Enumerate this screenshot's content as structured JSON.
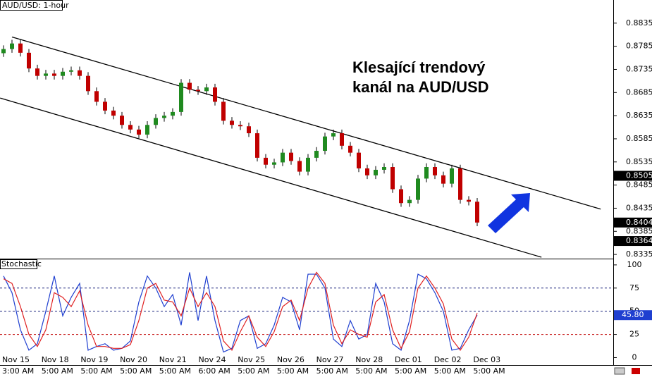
{
  "chart_data": {
    "type": "candlestick",
    "title": "AUD/USD: 1-hour",
    "annotation": [
      "Klesající trendový",
      "kanál na AUD/USD"
    ],
    "up_color": "#1f8a1f",
    "down_color": "#c00000",
    "wick_color": "#000000",
    "open": [
      0.877,
      0.8779,
      0.8791,
      0.8771,
      0.8737,
      0.8721,
      0.8726,
      0.8721,
      0.873,
      0.8733,
      0.8721,
      0.8688,
      0.8665,
      0.8646,
      0.8635,
      0.8615,
      0.8605,
      0.8594,
      0.8615,
      0.863,
      0.8635,
      0.8643,
      0.8706,
      0.8691,
      0.8688,
      0.8696,
      0.8665,
      0.8624,
      0.8615,
      0.8612,
      0.8597,
      0.8544,
      0.8529,
      0.8534,
      0.8555,
      0.8537,
      0.8514,
      0.8544,
      0.8559,
      0.859,
      0.8597,
      0.857,
      0.8555,
      0.8521,
      0.8506,
      0.8518,
      0.8524,
      0.8476,
      0.8446,
      0.8453,
      0.8499,
      0.8524,
      0.8506,
      0.8488,
      0.8521,
      0.8453,
      0.8449
    ],
    "high": [
      0.8787,
      0.8799,
      0.8799,
      0.8779,
      0.8745,
      0.8734,
      0.8734,
      0.8738,
      0.8741,
      0.8741,
      0.8729,
      0.8696,
      0.8673,
      0.8654,
      0.8643,
      0.8623,
      0.8613,
      0.8623,
      0.8638,
      0.8643,
      0.8651,
      0.8714,
      0.8714,
      0.8699,
      0.8704,
      0.8704,
      0.8673,
      0.8632,
      0.8623,
      0.862,
      0.8605,
      0.8552,
      0.8542,
      0.8563,
      0.8563,
      0.8545,
      0.8552,
      0.8567,
      0.8598,
      0.8605,
      0.8605,
      0.8578,
      0.8563,
      0.8529,
      0.8526,
      0.8532,
      0.8532,
      0.8484,
      0.8461,
      0.8507,
      0.8532,
      0.8532,
      0.8514,
      0.8529,
      0.8529,
      0.8461,
      0.8457
    ],
    "low": [
      0.8762,
      0.8771,
      0.8763,
      0.8729,
      0.8713,
      0.8713,
      0.8713,
      0.8713,
      0.8722,
      0.8713,
      0.868,
      0.8657,
      0.8638,
      0.8627,
      0.8607,
      0.8597,
      0.8586,
      0.8586,
      0.8607,
      0.8622,
      0.8627,
      0.8635,
      0.8683,
      0.868,
      0.868,
      0.8657,
      0.8616,
      0.8607,
      0.8604,
      0.8589,
      0.8536,
      0.8521,
      0.8521,
      0.8526,
      0.8529,
      0.8506,
      0.8506,
      0.8536,
      0.8551,
      0.8582,
      0.8562,
      0.8547,
      0.8513,
      0.8498,
      0.8498,
      0.851,
      0.8468,
      0.8438,
      0.8438,
      0.8445,
      0.8491,
      0.8498,
      0.848,
      0.848,
      0.8445,
      0.8441,
      0.8396
    ],
    "close": [
      0.8779,
      0.8791,
      0.8771,
      0.8737,
      0.8721,
      0.8726,
      0.8721,
      0.873,
      0.8733,
      0.8721,
      0.8688,
      0.8665,
      0.8646,
      0.8635,
      0.8615,
      0.8605,
      0.8594,
      0.8615,
      0.863,
      0.8635,
      0.8643,
      0.8706,
      0.8691,
      0.8688,
      0.8696,
      0.8665,
      0.8624,
      0.8615,
      0.8612,
      0.8597,
      0.8544,
      0.8529,
      0.8534,
      0.8555,
      0.8537,
      0.8514,
      0.8544,
      0.8559,
      0.859,
      0.8597,
      0.857,
      0.8555,
      0.8521,
      0.8506,
      0.8518,
      0.8524,
      0.8476,
      0.8446,
      0.8453,
      0.8499,
      0.8524,
      0.8506,
      0.8488,
      0.8521,
      0.8453,
      0.8449,
      0.8404
    ],
    "ylim": [
      0.8326,
      0.8885
    ],
    "yticks": [
      0.8835,
      0.8785,
      0.8735,
      0.8685,
      0.8635,
      0.8585,
      0.8535,
      0.8485,
      0.8435,
      0.8385,
      0.8335
    ],
    "price_markers": [
      0.8505,
      0.8404,
      0.8364
    ],
    "trendlines": [
      {
        "x": [
          1,
          70.6
        ],
        "y": [
          0.8805,
          0.8433
        ]
      },
      {
        "x": [
          -0.4,
          63.6
        ],
        "y": [
          0.8673,
          0.8329
        ]
      }
    ],
    "xticks_dates": [
      "Nov 15",
      "Nov 18",
      "Nov 19",
      "Nov 20",
      "Nov 21",
      "Nov 24",
      "Nov 25",
      "Nov 26",
      "Nov 27",
      "Nov 28",
      "Dec 01",
      "Dec 02",
      "Dec 03"
    ],
    "xticks_times": [
      "3:00 AM",
      "5:00 AM",
      "5:00 AM",
      "5:00 AM",
      "5:00 AM",
      "6:00 AM",
      "5:00 AM",
      "5:00 AM",
      "5:00 AM",
      "5:00 AM",
      "5:00 AM",
      "5:00 AM",
      "5:00 AM"
    ],
    "stochastic": {
      "title": "Stochastic",
      "ylim": [
        -8,
        106
      ],
      "yticks": [
        100,
        75,
        50,
        25,
        0
      ],
      "levels": [
        {
          "value": 75,
          "color": "#1a237e"
        },
        {
          "value": 50,
          "color": "#1a237e"
        },
        {
          "value": 25,
          "color": "#c00000"
        }
      ],
      "series": [
        {
          "color": "#1f3fd0",
          "values": [
            88,
            70,
            30,
            8,
            15,
            50,
            88,
            45,
            65,
            80,
            8,
            12,
            15,
            8,
            10,
            18,
            60,
            88,
            75,
            55,
            68,
            35,
            92,
            40,
            88,
            40,
            6,
            10,
            40,
            45,
            10,
            15,
            35,
            65,
            60,
            30,
            90,
            90,
            75,
            20,
            12,
            40,
            20,
            25,
            80,
            60,
            15,
            8,
            40,
            90,
            85,
            70,
            50,
            8,
            10,
            30,
            45.8
          ]
        },
        {
          "color": "#e02020",
          "values": [
            85,
            80,
            55,
            25,
            12,
            30,
            70,
            65,
            55,
            72,
            35,
            12,
            12,
            10,
            10,
            14,
            40,
            75,
            80,
            62,
            60,
            45,
            75,
            55,
            70,
            55,
            18,
            8,
            28,
            45,
            22,
            12,
            28,
            55,
            62,
            40,
            75,
            92,
            80,
            35,
            15,
            30,
            25,
            22,
            60,
            68,
            30,
            10,
            28,
            75,
            88,
            75,
            58,
            20,
            8,
            22,
            48
          ]
        }
      ],
      "marker": {
        "value": 45.8,
        "label": "45.80"
      }
    }
  }
}
